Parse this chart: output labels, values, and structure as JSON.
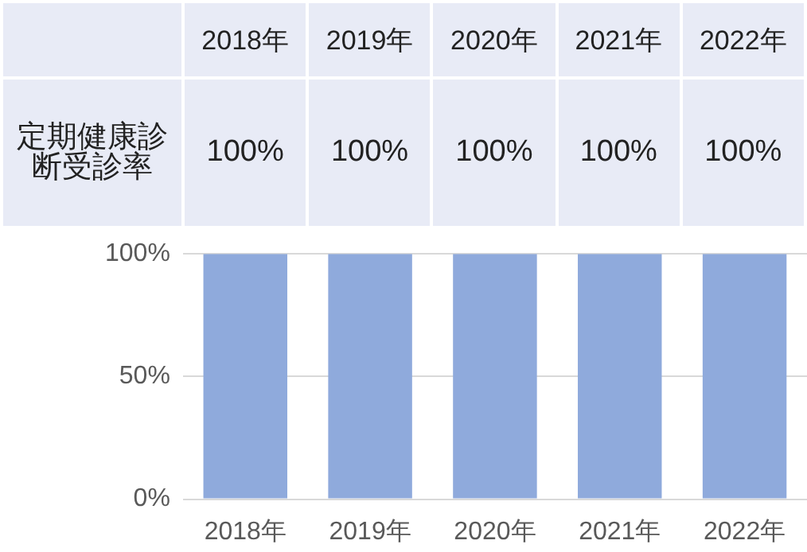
{
  "chart_data": {
    "type": "bar",
    "categories": [
      "2018年",
      "2019年",
      "2020年",
      "2021年",
      "2022年"
    ],
    "series": [
      {
        "name": "定期健康診断受診率",
        "color": "#8faadc",
        "values": [
          100,
          100,
          100,
          100,
          100
        ],
        "value_labels": [
          "100%",
          "100%",
          "100%",
          "100%",
          "100%"
        ]
      }
    ],
    "ylim": [
      0,
      100
    ],
    "yticks": [
      {
        "value": 0,
        "label": "0%"
      },
      {
        "value": 50,
        "label": "50%"
      },
      {
        "value": 100,
        "label": "100%"
      }
    ],
    "grid": "y",
    "legend": false
  }
}
